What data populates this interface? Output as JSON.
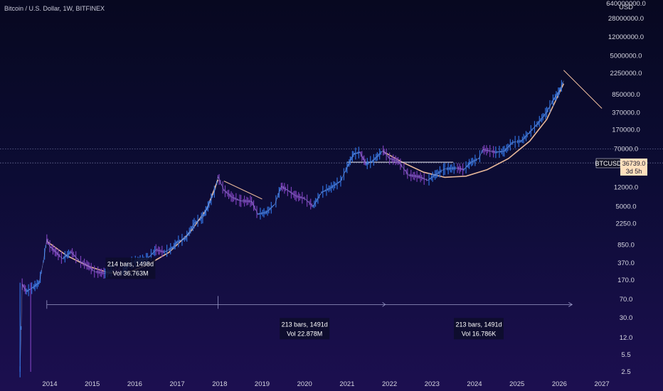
{
  "chart_data": {
    "type": "line",
    "title": "Bitcoin / U.S. Dollar, 1W, BITFINEX",
    "y_axis_unit": "USD",
    "y_scale": "log",
    "y_ticks": [
      "640000000.0",
      "28000000.0",
      "12000000.0",
      "5000000.0",
      "2250000.0",
      "850000.0",
      "370000.0",
      "170000.0",
      "70000.0",
      "12000.0",
      "5000.0",
      "2250.0",
      "850.0",
      "370.0",
      "170.0",
      "70.0",
      "30.0",
      "12.0",
      "5.5",
      "2.5"
    ],
    "y_tick_values": [
      640000000,
      28000000,
      12000000,
      5000000,
      2250000,
      850000,
      370000,
      170000,
      70000,
      12000,
      5000,
      2250,
      850,
      370,
      170,
      70,
      30,
      12,
      5.5,
      2.5
    ],
    "x_ticks": [
      "2014",
      "2015",
      "2016",
      "2017",
      "2018",
      "2019",
      "2020",
      "2021",
      "2022",
      "2023",
      "2024",
      "2025",
      "2026",
      "2027"
    ],
    "symbol": "BTCUSD",
    "last_price": "36739.0",
    "countdown": "3d 5h",
    "price_series": {
      "name": "BTCUSD",
      "points": [
        [
          2013.3,
          2.5
        ],
        [
          2013.35,
          140
        ],
        [
          2013.45,
          100
        ],
        [
          2013.6,
          120
        ],
        [
          2013.75,
          150
        ],
        [
          2013.85,
          400
        ],
        [
          2013.93,
          1100
        ],
        [
          2014.0,
          800
        ],
        [
          2014.15,
          600
        ],
        [
          2014.3,
          450
        ],
        [
          2014.5,
          620
        ],
        [
          2014.7,
          400
        ],
        [
          2014.9,
          330
        ],
        [
          2015.05,
          250
        ],
        [
          2015.3,
          230
        ],
        [
          2015.5,
          270
        ],
        [
          2015.7,
          240
        ],
        [
          2015.9,
          370
        ],
        [
          2016.1,
          420
        ],
        [
          2016.3,
          450
        ],
        [
          2016.5,
          680
        ],
        [
          2016.7,
          610
        ],
        [
          2016.9,
          760
        ],
        [
          2017.0,
          980
        ],
        [
          2017.2,
          1150
        ],
        [
          2017.4,
          2300
        ],
        [
          2017.6,
          3000
        ],
        [
          2017.75,
          5500
        ],
        [
          2017.9,
          11000
        ],
        [
          2017.96,
          19500
        ],
        [
          2018.1,
          10500
        ],
        [
          2018.3,
          7500
        ],
        [
          2018.5,
          6400
        ],
        [
          2018.75,
          6300
        ],
        [
          2018.9,
          3500
        ],
        [
          2019.1,
          3800
        ],
        [
          2019.3,
          5500
        ],
        [
          2019.45,
          12500
        ],
        [
          2019.6,
          10500
        ],
        [
          2019.8,
          8000
        ],
        [
          2020.0,
          7200
        ],
        [
          2020.2,
          5000
        ],
        [
          2020.4,
          9500
        ],
        [
          2020.6,
          11500
        ],
        [
          2020.85,
          16000
        ],
        [
          2021.0,
          30000
        ],
        [
          2021.15,
          55000
        ],
        [
          2021.3,
          60000
        ],
        [
          2021.45,
          35000
        ],
        [
          2021.6,
          40000
        ],
        [
          2021.85,
          65000
        ],
        [
          2022.0,
          45000
        ],
        [
          2022.2,
          40000
        ],
        [
          2022.45,
          21000
        ],
        [
          2022.7,
          19500
        ],
        [
          2022.9,
          16500
        ],
        [
          2023.1,
          22000
        ],
        [
          2023.3,
          28000
        ],
        [
          2023.6,
          29000
        ],
        [
          2023.75,
          27000
        ],
        [
          2023.9,
          37000
        ],
        [
          2024.1,
          45000
        ],
        [
          2024.2,
          68000
        ],
        [
          2024.5,
          60000
        ],
        [
          2024.7,
          63000
        ],
        [
          2024.9,
          95000
        ],
        [
          2025.1,
          100000
        ],
        [
          2025.3,
          150000
        ],
        [
          2025.5,
          230000
        ],
        [
          2025.7,
          380000
        ],
        [
          2025.85,
          650000
        ],
        [
          2026.0,
          1000000
        ],
        [
          2026.1,
          1600000
        ]
      ]
    },
    "trend_curves": [
      {
        "points": [
          [
            2013.93,
            1000
          ],
          [
            2014.4,
            520
          ],
          [
            2014.9,
            320
          ],
          [
            2015.4,
            235
          ],
          [
            2015.85,
            240
          ],
          [
            2016.3,
            340
          ],
          [
            2016.8,
            600
          ],
          [
            2017.3,
            1500
          ],
          [
            2017.7,
            4500
          ],
          [
            2017.96,
            17000
          ]
        ]
      },
      {
        "points": [
          [
            2021.85,
            62000
          ],
          [
            2022.3,
            38000
          ],
          [
            2022.8,
            24000
          ],
          [
            2023.3,
            19000
          ],
          [
            2023.8,
            20000
          ],
          [
            2024.3,
            27000
          ],
          [
            2024.8,
            45000
          ],
          [
            2025.3,
            100000
          ],
          [
            2025.7,
            270000
          ],
          [
            2026.1,
            1400000
          ]
        ]
      }
    ],
    "projection_lines": [
      {
        "from": [
          2018.1,
          16000
        ],
        "to": [
          2019.0,
          7000
        ]
      },
      {
        "from": [
          2026.1,
          2600000
        ],
        "to": [
          2027.0,
          450000
        ]
      }
    ],
    "horizontal_lines": [
      {
        "y": 36739,
        "style": "dotted",
        "color": "#6b6f99"
      },
      {
        "y": 70000,
        "style": "dotted",
        "color": "#5a5c86"
      }
    ],
    "range_line": {
      "y": 38000,
      "from": 2021.0,
      "to": 2023.5
    },
    "bars_measure_arrow": {
      "y": 55,
      "from": 2013.93,
      "to": 2026.3,
      "marks": [
        2017.96,
        2021.9
      ]
    },
    "annotations": [
      {
        "line1": "214 bars, 1498d",
        "line2": "Vol 36.763M",
        "x": 2015.9,
        "y": 320
      },
      {
        "line1": "213 bars, 1491d",
        "line2": "Vol 22.878M",
        "x": 2020.0,
        "y": 20
      },
      {
        "line1": "213 bars, 1491d",
        "line2": "Vol 16.786K",
        "x": 2024.1,
        "y": 20
      }
    ],
    "colors": {
      "price_up": "#2f6fdc",
      "price_down": "#7a3fb8",
      "curve": "#e8b89a",
      "label_box": "#0d0d2a",
      "accent": "#ffd7a8"
    }
  }
}
